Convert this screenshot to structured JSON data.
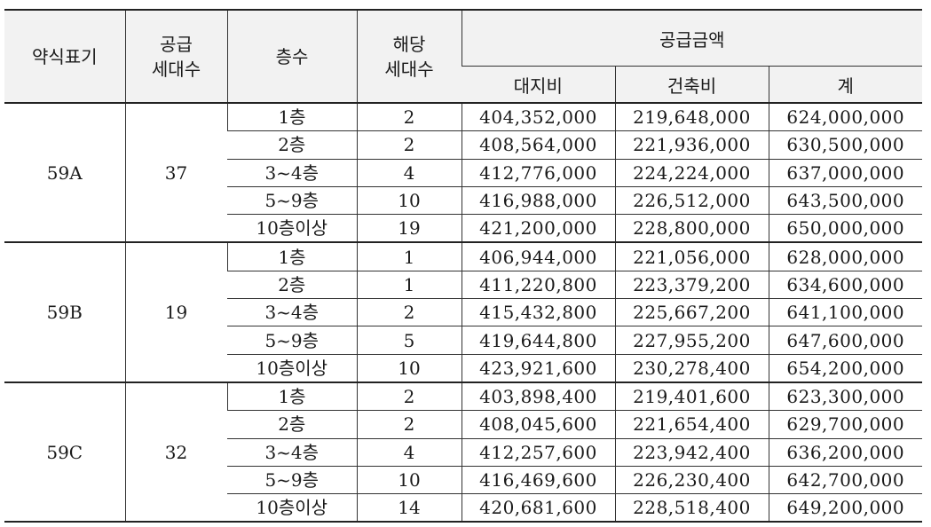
{
  "headers": {
    "type": "약식표기",
    "supply_units": [
      "공급",
      "세대수"
    ],
    "floor": "층수",
    "applicable_units": [
      "해당",
      "세대수"
    ],
    "supply_amount": "공급금액",
    "land": "대지비",
    "building": "건축비",
    "total": "계"
  },
  "groups": [
    {
      "type": "59A",
      "units": "37",
      "rows": [
        {
          "floor": "1층",
          "count": "2",
          "land": "404,352,000",
          "building": "219,648,000",
          "total": "624,000,000"
        },
        {
          "floor": "2층",
          "count": "2",
          "land": "408,564,000",
          "building": "221,936,000",
          "total": "630,500,000"
        },
        {
          "floor": "3~4층",
          "count": "4",
          "land": "412,776,000",
          "building": "224,224,000",
          "total": "637,000,000"
        },
        {
          "floor": "5~9층",
          "count": "10",
          "land": "416,988,000",
          "building": "226,512,000",
          "total": "643,500,000"
        },
        {
          "floor": "10층이상",
          "count": "19",
          "land": "421,200,000",
          "building": "228,800,000",
          "total": "650,000,000"
        }
      ]
    },
    {
      "type": "59B",
      "units": "19",
      "rows": [
        {
          "floor": "1층",
          "count": "1",
          "land": "406,944,000",
          "building": "221,056,000",
          "total": "628,000,000"
        },
        {
          "floor": "2층",
          "count": "1",
          "land": "411,220,800",
          "building": "223,379,200",
          "total": "634,600,000"
        },
        {
          "floor": "3~4층",
          "count": "2",
          "land": "415,432,800",
          "building": "225,667,200",
          "total": "641,100,000"
        },
        {
          "floor": "5~9층",
          "count": "5",
          "land": "419,644,800",
          "building": "227,955,200",
          "total": "647,600,000"
        },
        {
          "floor": "10층이상",
          "count": "10",
          "land": "423,921,600",
          "building": "230,278,400",
          "total": "654,200,000"
        }
      ]
    },
    {
      "type": "59C",
      "units": "32",
      "rows": [
        {
          "floor": "1층",
          "count": "2",
          "land": "403,898,400",
          "building": "219,401,600",
          "total": "623,300,000"
        },
        {
          "floor": "2층",
          "count": "2",
          "land": "408,045,600",
          "building": "221,654,400",
          "total": "629,700,000"
        },
        {
          "floor": "3~4층",
          "count": "4",
          "land": "412,257,600",
          "building": "223,942,400",
          "total": "636,200,000"
        },
        {
          "floor": "5~9층",
          "count": "10",
          "land": "416,469,600",
          "building": "226,230,400",
          "total": "642,700,000"
        },
        {
          "floor": "10층이상",
          "count": "14",
          "land": "420,681,600",
          "building": "228,518,400",
          "total": "649,200,000"
        }
      ]
    }
  ]
}
